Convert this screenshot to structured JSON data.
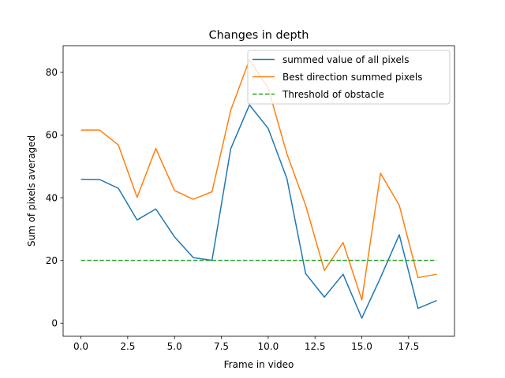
{
  "chart_data": {
    "type": "line",
    "title": "Changes in depth",
    "xlabel": "Frame in video",
    "ylabel": "Sum of pixels averaged",
    "xlim": [
      -0.95,
      19.95
    ],
    "ylim": [
      -4.2,
      88.5
    ],
    "xticks": [
      0,
      2.5,
      5,
      7.5,
      10,
      12.5,
      15,
      17.5
    ],
    "xtick_labels": [
      "0.0",
      "2.5",
      "5.0",
      "7.5",
      "10.0",
      "12.5",
      "15.0",
      "17.5"
    ],
    "yticks": [
      0,
      20,
      40,
      60,
      80
    ],
    "ytick_labels": [
      "0",
      "20",
      "40",
      "60",
      "80"
    ],
    "grid": false,
    "legend_position": "top-right",
    "x": [
      0,
      1,
      2,
      3,
      4,
      5,
      6,
      7,
      8,
      9,
      10,
      11,
      12,
      13,
      14,
      15,
      16,
      17,
      18,
      19
    ],
    "series": [
      {
        "name": "summed value of all pixels",
        "color": "#1f77b4",
        "style": "solid",
        "values": [
          45.9,
          45.8,
          43.0,
          32.9,
          36.4,
          27.5,
          20.9,
          20.0,
          55.6,
          69.6,
          62.1,
          46.1,
          15.8,
          8.3,
          15.6,
          1.6,
          14.5,
          28.2,
          4.7,
          7.2
        ]
      },
      {
        "name": "Best direction summed pixels",
        "color": "#ff7f0e",
        "style": "solid",
        "values": [
          61.6,
          61.6,
          56.8,
          40.1,
          55.7,
          42.3,
          39.5,
          41.9,
          67.9,
          84.0,
          75.0,
          54.0,
          37.6,
          16.8,
          25.7,
          7.4,
          47.8,
          37.6,
          14.5,
          15.6
        ]
      },
      {
        "name": "Threshold of obstacle",
        "color": "#2ca02c",
        "style": "dashed",
        "values": [
          20,
          20,
          20,
          20,
          20,
          20,
          20,
          20,
          20,
          20,
          20,
          20,
          20,
          20,
          20,
          20,
          20,
          20,
          20,
          20
        ]
      }
    ]
  }
}
